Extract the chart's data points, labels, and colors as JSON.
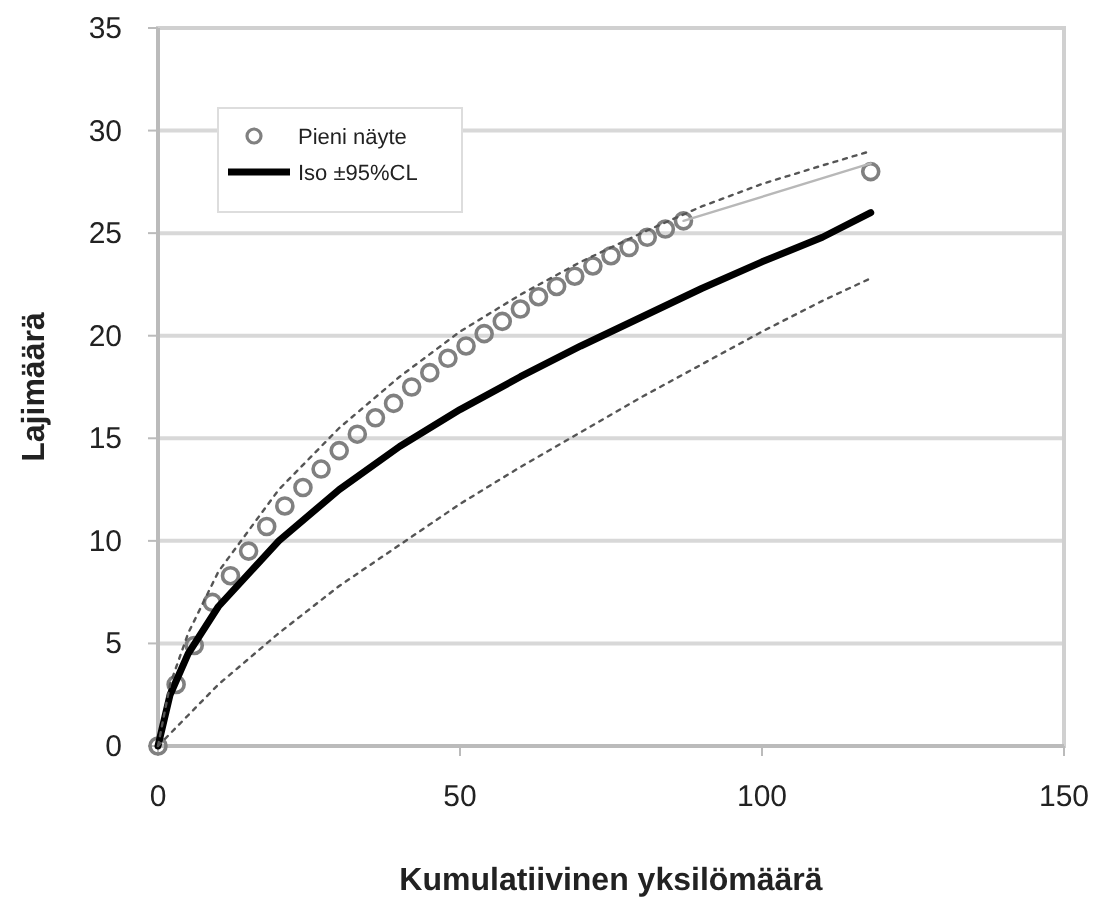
{
  "chart_data": {
    "type": "scatter",
    "xlabel": "Kumulatiivinen yksilömäärä",
    "ylabel": "Lajimäärä",
    "xlim": [
      0,
      150
    ],
    "xticks": [
      0,
      50,
      100,
      150
    ],
    "ylim": [
      0,
      35
    ],
    "yticks": [
      0,
      5,
      10,
      15,
      20,
      25,
      30,
      35
    ],
    "grid": "y",
    "legend": "top left",
    "series": [
      {
        "name": "Pieni näyte",
        "marker": "circle",
        "color": "#808080",
        "x": [
          0,
          3,
          6,
          9,
          12,
          15,
          18,
          21,
          24,
          27,
          30,
          33,
          36,
          39,
          42,
          45,
          48,
          51,
          54,
          57,
          60,
          63,
          66,
          69,
          72,
          75,
          78,
          81,
          84,
          87,
          118
        ],
        "values": [
          0,
          3,
          4.9,
          7,
          8.3,
          9.5,
          10.7,
          11.7,
          12.6,
          13.5,
          14.4,
          15.2,
          16,
          16.7,
          17.5,
          18.2,
          18.9,
          19.5,
          20.1,
          20.7,
          21.3,
          21.9,
          22.4,
          22.9,
          23.4,
          23.9,
          24.3,
          24.8,
          25.2,
          25.6,
          28
        ]
      },
      {
        "type": "line",
        "color": "#b8b8b8",
        "x": [
          87,
          118
        ],
        "values": [
          25.6,
          28.4
        ]
      },
      {
        "name": "Iso ±95%CL",
        "type": "line",
        "color": "#000000",
        "x": [
          0,
          2,
          5,
          10,
          20,
          30,
          40,
          50,
          60,
          70,
          80,
          90,
          100,
          110,
          118
        ],
        "values": [
          0,
          2.5,
          4.5,
          6.8,
          10,
          12.5,
          14.6,
          16.4,
          18,
          19.5,
          20.9,
          22.3,
          23.6,
          24.8,
          26
        ]
      },
      {
        "type": "line",
        "color": "#555555",
        "line_style": "dotted",
        "x": [
          0,
          2,
          5,
          10,
          20,
          30,
          40,
          50,
          60,
          70,
          80,
          90,
          100,
          110,
          118
        ],
        "values": [
          0,
          0.6,
          1.5,
          3,
          5.5,
          7.8,
          9.8,
          11.8,
          13.6,
          15.3,
          17,
          18.6,
          20.2,
          21.7,
          22.8
        ]
      },
      {
        "type": "line",
        "color": "#555555",
        "line_style": "dotted",
        "x": [
          0,
          2,
          5,
          10,
          20,
          30,
          40,
          50,
          60,
          70,
          80,
          90,
          100,
          110,
          118
        ],
        "values": [
          0,
          3,
          5.5,
          8.5,
          12.5,
          15.5,
          18,
          20.2,
          22,
          23.6,
          25,
          26.3,
          27.4,
          28.3,
          29
        ]
      }
    ]
  }
}
